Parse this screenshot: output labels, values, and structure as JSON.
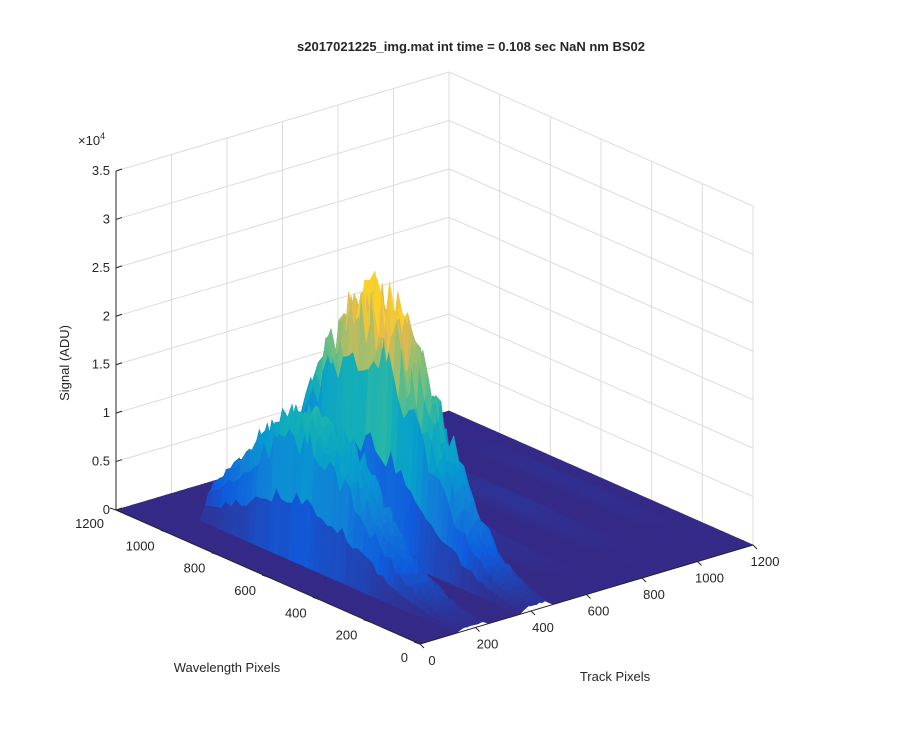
{
  "chart_data": {
    "type": "surface",
    "title": "s2017021225_img.mat int time = 0.108 sec  NaN nm BS02",
    "zlabel": "Signal (ADU)",
    "ylabel": "Wavelength Pixels",
    "xlabel": "Track Pixels",
    "z_exponent_label": "×10",
    "z_exponent_power": "4",
    "zlim": [
      0,
      35000
    ],
    "xlim": [
      0,
      1200
    ],
    "ylim": [
      0,
      1200
    ],
    "z_ticks": [
      "0",
      "0.5",
      "1",
      "1.5",
      "2",
      "2.5",
      "3",
      "3.5"
    ],
    "x_ticks": [
      "0",
      "200",
      "400",
      "600",
      "800",
      "1000",
      "1200"
    ],
    "y_ticks": [
      "0",
      "200",
      "400",
      "600",
      "800",
      "1000",
      "1200"
    ],
    "colormap": "parula",
    "colors": {
      "low": "#352a87",
      "mid_low": "#0f5cdd",
      "mid": "#1aa9c8",
      "mid_high": "#5dbe8a",
      "high": "#f9d12a"
    },
    "series": [
      {
        "track_center": 190,
        "track_width": 110,
        "wavelength_range": [
          0,
          1000
        ],
        "peak_signal": 14500
      },
      {
        "track_center": 420,
        "track_width": 110,
        "wavelength_range": [
          0,
          1000
        ],
        "peak_signal": 24000
      },
      {
        "track_center": 650,
        "track_width": 110,
        "wavelength_range": [
          0,
          1000
        ],
        "peak_signal": 800
      },
      {
        "track_center": 880,
        "track_width": 110,
        "wavelength_range": [
          0,
          1000
        ],
        "peak_signal": 600
      },
      {
        "track_center": 1100,
        "track_width": 90,
        "wavelength_range": [
          0,
          1000
        ],
        "peak_signal": 400
      }
    ],
    "grid": true,
    "view": "3d-az-37-el-30"
  }
}
